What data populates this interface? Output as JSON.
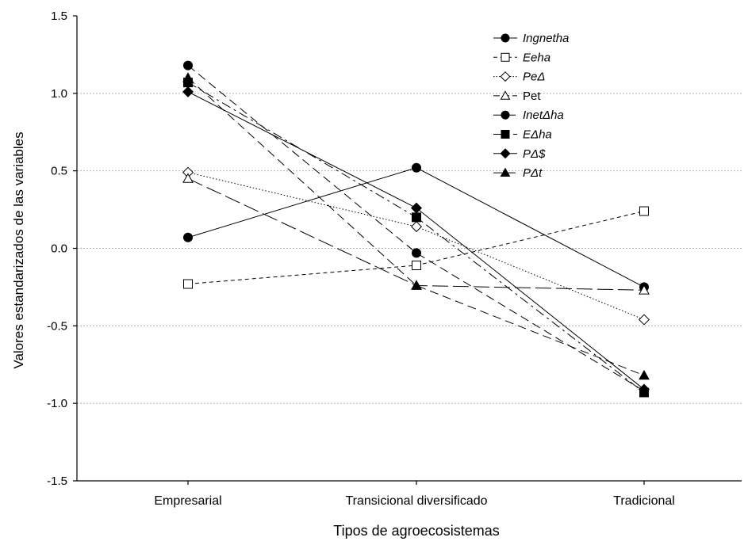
{
  "chart_data": {
    "type": "line",
    "title": "",
    "xlabel": "Tipos de agroecosistemas",
    "ylabel": "Valores estandarizados de las variables",
    "categories": [
      "Empresarial",
      "Transicional diversificado",
      "Tradicional"
    ],
    "ylim": [
      -1.5,
      1.5
    ],
    "yticks": [
      1.5,
      1.0,
      0.5,
      0.0,
      -0.5,
      -1.0,
      -1.5
    ],
    "ytick_labels": [
      "1.5",
      "1.0",
      "0.5",
      "0.0",
      "-0.5",
      "-1.0",
      "-1.5"
    ],
    "grid": "horizontal dotted",
    "legend_position": "top-right",
    "series": [
      {
        "name": "Ingnetha",
        "italic": true,
        "marker": "circle-filled",
        "dash": "solid",
        "values": [
          0.07,
          0.52,
          -0.25
        ]
      },
      {
        "name": "Eeha",
        "italic": true,
        "marker": "square-open",
        "dash": "short-dash",
        "values": [
          -0.23,
          -0.11,
          0.24
        ]
      },
      {
        "name": "PeΔ",
        "italic": true,
        "marker": "diamond-open",
        "dash": "dotted",
        "values": [
          0.49,
          0.14,
          -0.46
        ]
      },
      {
        "name": "Pet",
        "italic": false,
        "marker": "triangle-open",
        "dash": "long-dash",
        "values": [
          0.45,
          -0.24,
          -0.27
        ]
      },
      {
        "name": "InetΔha",
        "italic": true,
        "marker": "circle-filled",
        "dash": "dash",
        "values": [
          1.18,
          -0.03,
          -0.92
        ]
      },
      {
        "name": "EΔha",
        "italic": true,
        "marker": "square-filled",
        "dash": "dash-dot",
        "values": [
          1.07,
          0.2,
          -0.93
        ]
      },
      {
        "name": "PΔ$",
        "italic": true,
        "marker": "diamond-filled",
        "dash": "solid",
        "values": [
          1.01,
          0.26,
          -0.91
        ]
      },
      {
        "name": "PΔt",
        "italic": true,
        "marker": "triangle-filled",
        "dash": "dash",
        "values": [
          1.1,
          -0.24,
          -0.82
        ]
      }
    ]
  }
}
